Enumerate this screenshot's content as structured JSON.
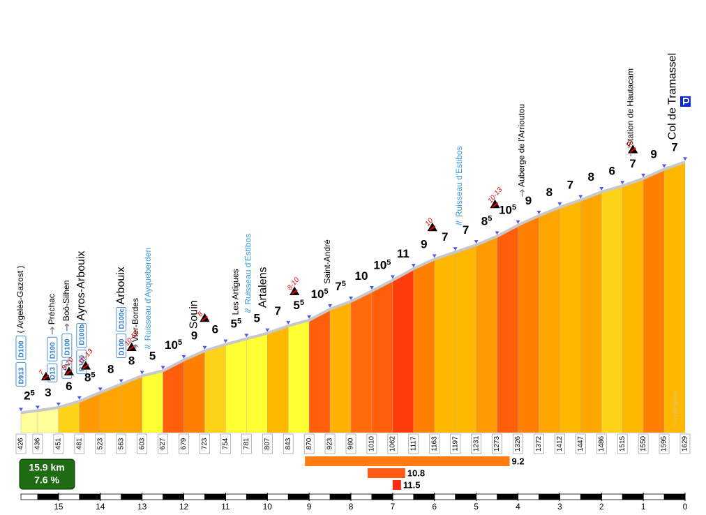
{
  "chart_data": {
    "type": "climb-profile",
    "km": [
      15.9,
      15.5,
      15,
      14.5,
      14,
      13.5,
      13,
      12.5,
      12,
      11.5,
      11,
      10.5,
      10,
      9.5,
      9,
      8.5,
      8,
      7.5,
      7,
      6.5,
      6,
      5.5,
      5,
      4.5,
      4,
      3.5,
      3,
      2.5,
      2,
      1.5,
      1,
      0.5,
      0
    ],
    "elevations": [
      426,
      436,
      451,
      481,
      523,
      563,
      603,
      627,
      679,
      723,
      754,
      781,
      807,
      843,
      870,
      923,
      960,
      1010,
      1062,
      1117,
      1163,
      1197,
      1231,
      1273,
      1326,
      1372,
      1412,
      1447,
      1486,
      1515,
      1550,
      1595,
      1629
    ],
    "gradients": [
      2.5,
      3,
      6,
      8.5,
      8,
      8,
      5,
      10.5,
      9,
      6,
      5.5,
      5,
      7,
      5.5,
      10.5,
      7.5,
      10,
      10.5,
      11,
      9,
      7,
      7,
      8.5,
      10.5,
      9,
      8,
      7,
      8,
      6,
      7,
      9,
      7
    ],
    "value_labels": [
      {
        "int": "2",
        "frac": "5"
      },
      {
        "int": "3"
      },
      {
        "int": "6"
      },
      {
        "int": "8",
        "frac": "5"
      },
      {
        "int": "8"
      },
      {
        "int": "8"
      },
      {
        "int": "5"
      },
      {
        "int": "10",
        "frac": "5"
      },
      {
        "int": "9"
      },
      {
        "int": "6"
      },
      {
        "int": "5",
        "frac": "5"
      },
      {
        "int": "5"
      },
      {
        "int": "7"
      },
      {
        "int": "5",
        "frac": "5"
      },
      {
        "int": "10",
        "frac": "5"
      },
      {
        "int": "7",
        "frac": "5"
      },
      {
        "int": "10"
      },
      {
        "int": "10",
        "frac": "5"
      },
      {
        "int": "11"
      },
      {
        "int": "9"
      },
      {
        "int": "7"
      },
      {
        "int": "7"
      },
      {
        "int": "8",
        "frac": "5"
      },
      {
        "int": "10",
        "frac": "5"
      },
      {
        "int": "9"
      },
      {
        "int": "8"
      },
      {
        "int": "7"
      },
      {
        "int": "8"
      },
      {
        "int": "6"
      },
      {
        "int": "7"
      },
      {
        "int": "9"
      },
      {
        "int": "7"
      }
    ],
    "colors": [
      "#ffff99",
      "#ffff99",
      "#ffd21a",
      "#ff9a00",
      "#ffa500",
      "#ffa500",
      "#ffff33",
      "#ff5e0a",
      "#ff8000",
      "#ffd21a",
      "#ffff33",
      "#ffff33",
      "#ffb700",
      "#ffff33",
      "#ff5e0a",
      "#ffb000",
      "#ff6a0a",
      "#ff5e0a",
      "#ff3c0a",
      "#ff8000",
      "#ffb700",
      "#ffb700",
      "#ff9a00",
      "#ff5e0a",
      "#ff8000",
      "#ffa500",
      "#ffb700",
      "#ffa500",
      "#ffd21a",
      "#ffb700",
      "#ff8000",
      "#ffb700"
    ],
    "xlim": [
      15.9,
      0
    ],
    "ylim": [
      330,
      1650
    ],
    "xticks": [
      15,
      14,
      13,
      12,
      11,
      10,
      9,
      8,
      7,
      6,
      5,
      4,
      3,
      2,
      1,
      0
    ],
    "summary": {
      "distance": "15.9 km",
      "gradient": "7.6 %"
    },
    "steep_sections": [
      {
        "value": 9.2,
        "from": 9.1,
        "to": 4.2,
        "color": "#ff7a10"
      },
      {
        "value": 10.8,
        "from": 7.6,
        "to": 6.7,
        "color": "#ff5a10"
      },
      {
        "value": 11.5,
        "from": 7.0,
        "to": 6.8,
        "color": "#ff2a10"
      }
    ],
    "places": [
      {
        "km": 15.9,
        "name": "( Argelès-Gazost )",
        "roads": [
          "D913",
          "D100"
        ]
      },
      {
        "km": 15.15,
        "name": "Préchac",
        "arrow": true,
        "roads": [
          "D13",
          "D100"
        ]
      },
      {
        "km": 14.8,
        "name": "Boô-Silhen",
        "arrow": true,
        "roads": [
          "D13",
          "D100"
        ]
      },
      {
        "km": 14.45,
        "name": "Ayros-Arbouix",
        "major": true,
        "roads": [
          "D100",
          "D100b"
        ]
      },
      {
        "km": 13.5,
        "name": "Arbouix",
        "major": true,
        "roads": [
          "D100",
          "D100c"
        ]
      },
      {
        "km": 13.15,
        "name": "Vier-Bordes",
        "arrow": true
      },
      {
        "km": 12.85,
        "name": "Ruisseau d'Ayqueberden",
        "river": true
      },
      {
        "km": 11.75,
        "name": "Souin",
        "major": true
      },
      {
        "km": 10.75,
        "name": "Les Artigues"
      },
      {
        "km": 10.45,
        "name": "Ruisseau d'Estibos",
        "river": true
      },
      {
        "km": 10.1,
        "name": "Artalens",
        "major": true
      },
      {
        "km": 8.55,
        "name": "Saint-André"
      },
      {
        "km": 5.4,
        "name": "Ruisseau d'Estibos",
        "river": true
      },
      {
        "km": 3.9,
        "name": "Auberge de l'Arrioutou",
        "arrow": true
      },
      {
        "km": 1.3,
        "name": "Station de Hautacam",
        "arrow": true
      },
      {
        "km": 0.3,
        "name": "Col de Tramassel",
        "major": true
      }
    ],
    "warnings": [
      {
        "km": 15.3,
        "label": "7"
      },
      {
        "km": 14.75,
        "label": "8-10"
      },
      {
        "km": 14.35,
        "label": "10-13"
      },
      {
        "km": 13.25,
        "label": "10-13"
      },
      {
        "km": 11.5,
        "label": "8"
      },
      {
        "km": 9.35,
        "label": "8-10"
      },
      {
        "km": 6.05,
        "label": "10"
      },
      {
        "km": 4.55,
        "label": "10-13"
      },
      {
        "km": 1.25,
        "label": "10"
      }
    ],
    "credit": "© cyclingcols"
  }
}
